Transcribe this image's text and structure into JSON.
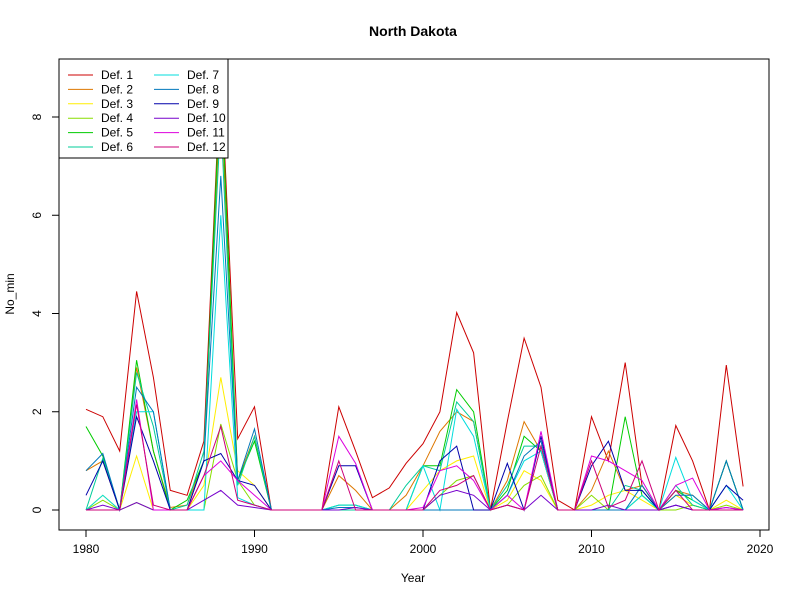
{
  "chart_data": {
    "type": "line",
    "title": "North Dakota",
    "xlabel": "Year",
    "ylabel": "No_min",
    "xlim": [
      1980,
      2020
    ],
    "ylim": [
      0,
      9.2
    ],
    "x_ticks": [
      1980,
      1990,
      2000,
      2010,
      2020
    ],
    "y_ticks": [
      0,
      2,
      4,
      6,
      8
    ],
    "legend_position": "top-left",
    "x": [
      1980,
      1981,
      1982,
      1983,
      1984,
      1985,
      1986,
      1987,
      1988,
      1989,
      1990,
      1991,
      1992,
      1993,
      1994,
      1995,
      1996,
      1997,
      1998,
      1999,
      2000,
      2001,
      2002,
      2003,
      2004,
      2005,
      2006,
      2007,
      2008,
      2009,
      2010,
      2011,
      2012,
      2013,
      2014,
      2015,
      2016,
      2017,
      2018,
      2019
    ],
    "series": [
      {
        "name": "Def. 1",
        "color": "#CC0000",
        "values": [
          2.05,
          1.9,
          1.2,
          4.45,
          2.7,
          0.4,
          0.3,
          1.4,
          9.0,
          1.45,
          2.1,
          0,
          0,
          0,
          0,
          2.1,
          1.2,
          0.25,
          0.45,
          0.95,
          1.35,
          2.0,
          4.02,
          3.2,
          0.0,
          1.8,
          3.5,
          2.5,
          0.2,
          0.0,
          1.9,
          1.0,
          3.0,
          0.5,
          0.0,
          1.72,
          1.0,
          0.0,
          2.95,
          0.48
        ]
      },
      {
        "name": "Def. 2",
        "color": "#DD7700",
        "values": [
          0.8,
          1.0,
          0.0,
          2.9,
          1.2,
          0.05,
          0.1,
          1.0,
          8.5,
          0.6,
          1.5,
          0,
          0,
          0,
          0,
          0.7,
          0.4,
          0.0,
          0.0,
          0.3,
          0.9,
          1.6,
          2.0,
          1.8,
          0.0,
          0.6,
          1.8,
          1.2,
          0.0,
          0.0,
          0.4,
          1.2,
          0.4,
          0.5,
          0.0,
          0.4,
          0.3,
          0.0,
          1.0,
          0.0
        ]
      },
      {
        "name": "Def. 3",
        "color": "#FFEE00",
        "values": [
          0.0,
          0.3,
          0.0,
          1.1,
          0.0,
          0.0,
          0.0,
          0.5,
          2.7,
          0.8,
          0.5,
          0,
          0,
          0,
          0,
          0.0,
          0.0,
          0.0,
          0.0,
          0.0,
          0.4,
          0.8,
          1.0,
          1.1,
          0.0,
          0.2,
          0.8,
          0.6,
          0.0,
          0.0,
          0.1,
          0.3,
          0.4,
          0.2,
          0.0,
          0.3,
          0.1,
          0.0,
          0.2,
          0.0
        ]
      },
      {
        "name": "Def. 4",
        "color": "#88DD00",
        "values": [
          0.0,
          0.2,
          0.0,
          0.15,
          0.0,
          0.0,
          0.0,
          0.0,
          1.75,
          0.6,
          0.1,
          0,
          0,
          0,
          0,
          0.0,
          0.0,
          0.0,
          0.0,
          0.0,
          0.0,
          0.3,
          0.6,
          0.7,
          0.0,
          0.1,
          0.5,
          0.7,
          0.0,
          0.0,
          0.3,
          0.0,
          0.0,
          0.3,
          0.0,
          0.0,
          0.1,
          0.0,
          0.1,
          0.0
        ]
      },
      {
        "name": "Def. 5",
        "color": "#00CC00",
        "values": [
          1.7,
          1.1,
          0.0,
          3.05,
          1.2,
          0.0,
          0.2,
          1.0,
          8.9,
          0.6,
          1.4,
          0,
          0,
          0,
          0,
          0.1,
          0.1,
          0.0,
          0.0,
          0.0,
          0.9,
          0.9,
          2.45,
          2.0,
          0.0,
          0.4,
          1.5,
          1.2,
          0.0,
          0.0,
          0.0,
          0.0,
          1.9,
          0.3,
          0.0,
          0.4,
          0.2,
          0.0,
          1.0,
          0.0
        ]
      },
      {
        "name": "Def. 6",
        "color": "#00CC99",
        "values": [
          0.0,
          1.05,
          0.0,
          2.8,
          1.7,
          0.0,
          0.1,
          1.2,
          8.0,
          0.5,
          1.5,
          0,
          0,
          0,
          0,
          0.0,
          0.0,
          0.0,
          0.0,
          0.5,
          0.9,
          0.8,
          2.2,
          1.8,
          0.0,
          0.5,
          1.3,
          1.3,
          0.0,
          0.0,
          0.0,
          0.0,
          0.5,
          0.4,
          0.0,
          0.5,
          0.1,
          0.0,
          1.0,
          0.0
        ]
      },
      {
        "name": "Def. 7",
        "color": "#00DDDD",
        "values": [
          0.0,
          0.3,
          0.0,
          2.0,
          2.0,
          0.0,
          0.0,
          0.0,
          6.0,
          0.25,
          0.1,
          0,
          0,
          0,
          0,
          0.1,
          0.1,
          0.0,
          0.0,
          0.0,
          0.9,
          0.0,
          2.05,
          1.5,
          0.0,
          0.3,
          1.0,
          1.2,
          0.0,
          0.0,
          0.0,
          0.0,
          0.0,
          0.3,
          0.0,
          1.07,
          0.2,
          0.0,
          0.5,
          0.0
        ]
      },
      {
        "name": "Def. 8",
        "color": "#0077BB",
        "values": [
          0.8,
          1.15,
          0.0,
          2.5,
          2.0,
          0.0,
          0.0,
          1.0,
          6.8,
          0.6,
          1.65,
          0,
          0,
          0,
          0,
          0.05,
          0.05,
          0.0,
          0.0,
          0.0,
          0.0,
          0.0,
          0.0,
          0.0,
          0.0,
          0.3,
          1.1,
          1.4,
          0.0,
          0.0,
          0.0,
          0.0,
          0.0,
          0.5,
          0.0,
          0.3,
          0.3,
          0.0,
          1.0,
          0.0
        ]
      },
      {
        "name": "Def. 9",
        "color": "#0000AA",
        "values": [
          0.3,
          1.0,
          0.0,
          1.9,
          1.0,
          0.0,
          0.0,
          1.0,
          1.15,
          0.6,
          0.5,
          0,
          0,
          0,
          0,
          0.9,
          0.9,
          0.0,
          0.0,
          0.0,
          0.0,
          1.0,
          1.3,
          0.0,
          0.0,
          0.95,
          0.0,
          1.5,
          0.0,
          0.0,
          0.9,
          1.4,
          0.4,
          0.4,
          0.0,
          0.1,
          0.0,
          0.0,
          0.5,
          0.2
        ]
      },
      {
        "name": "Def. 10",
        "color": "#7700CC",
        "values": [
          0.0,
          0.1,
          0.0,
          0.15,
          0.0,
          0.0,
          0.0,
          0.2,
          0.4,
          0.1,
          0.05,
          0,
          0,
          0,
          0,
          0.0,
          0.05,
          0.0,
          0.0,
          0.0,
          0.0,
          0.3,
          0.4,
          0.3,
          0.0,
          0.1,
          0.0,
          0.3,
          0.0,
          0.0,
          0.0,
          0.1,
          0.0,
          0.0,
          0.0,
          0.1,
          0.0,
          0.0,
          0.05,
          0.0
        ]
      },
      {
        "name": "Def. 11",
        "color": "#DD00DD",
        "values": [
          0.0,
          0.0,
          0.0,
          2.25,
          0.0,
          0.0,
          0.0,
          0.7,
          1.0,
          0.6,
          0.3,
          0,
          0,
          0,
          0,
          1.5,
          0.95,
          0.0,
          0.0,
          0.0,
          0.05,
          0.8,
          0.9,
          0.6,
          0.0,
          0.3,
          0.0,
          1.6,
          0.0,
          0.0,
          1.1,
          1.0,
          0.8,
          0.6,
          0.0,
          0.5,
          0.65,
          0.0,
          0.05,
          0.0
        ]
      },
      {
        "name": "Def. 12",
        "color": "#CC0077",
        "values": [
          0.0,
          0.0,
          0.0,
          2.15,
          0.1,
          0.0,
          0.0,
          0.7,
          1.7,
          0.2,
          0.1,
          0,
          0,
          0,
          0,
          1.0,
          0.0,
          0.0,
          0.0,
          0.0,
          0.0,
          0.4,
          0.5,
          0.7,
          0.0,
          0.1,
          0.0,
          1.3,
          0.0,
          0.0,
          1.0,
          0.05,
          0.2,
          1.0,
          0.0,
          0.4,
          0.0,
          0.0,
          0.0,
          0.0
        ]
      }
    ]
  }
}
